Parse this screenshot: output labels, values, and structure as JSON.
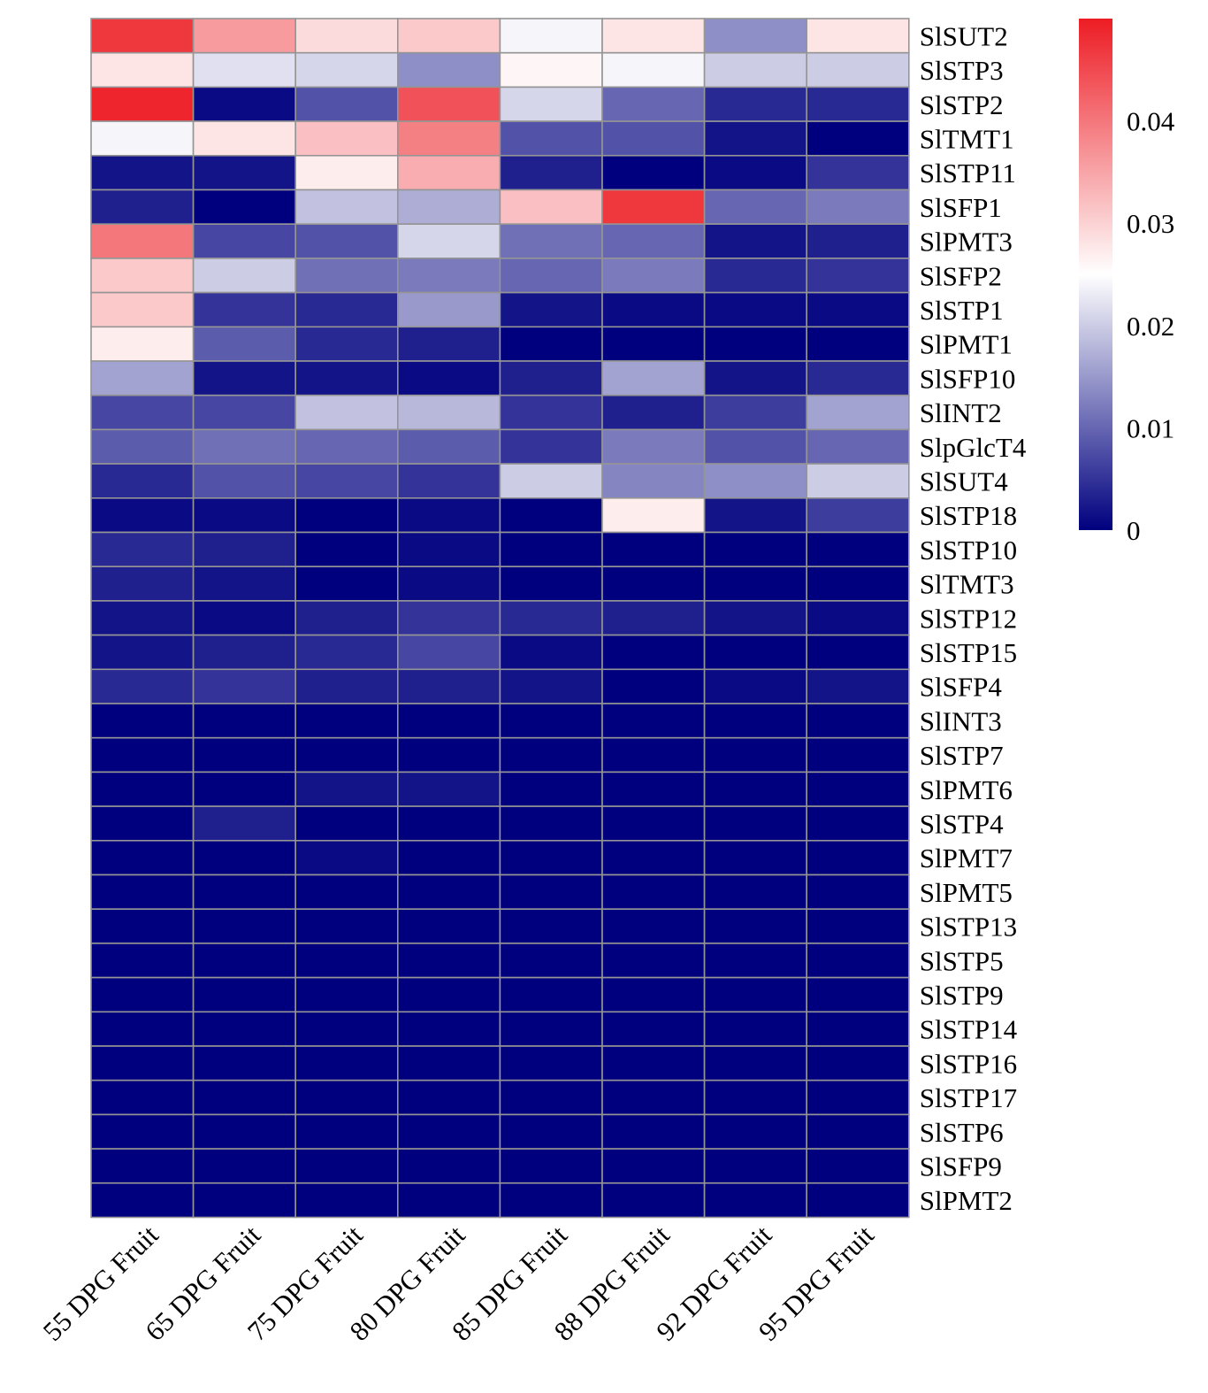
{
  "chart_data": {
    "type": "heatmap",
    "title": "",
    "xlabel": "",
    "ylabel": "",
    "columns": [
      "55 DPG Fruit",
      "65 DPG Fruit",
      "75 DPG Fruit",
      "80 DPG Fruit",
      "85 DPG Fruit",
      "88 DPG Fruit",
      "92 DPG Fruit",
      "95 DPG Fruit"
    ],
    "rows": [
      "SlSUT2",
      "SlSTP3",
      "SlSTP2",
      "SlTMT1",
      "SlSTP11",
      "SlSFP1",
      "SlPMT3",
      "SlSFP2",
      "SlSTP1",
      "SlPMT1",
      "SlSFP10",
      "SlINT2",
      "SlpGlcT4",
      "SlSUT4",
      "SlSTP18",
      "SlSTP10",
      "SlTMT3",
      "SlSTP12",
      "SlSTP15",
      "SlSFP4",
      "SlINT3",
      "SlSTP7",
      "SlPMT6",
      "SlSTP4",
      "SlPMT7",
      "SlPMT5",
      "SlSTP13",
      "SlSTP5",
      "SlSTP9",
      "SlSTP14",
      "SlSTP16",
      "SlSTP17",
      "SlSTP6",
      "SlSFP9",
      "SlPMT2"
    ],
    "values": [
      [
        0.047,
        0.036,
        0.029,
        0.031,
        0.024,
        0.028,
        0.014,
        0.028
      ],
      [
        0.028,
        0.022,
        0.021,
        0.014,
        0.026,
        0.024,
        0.02,
        0.02
      ],
      [
        0.049,
        0.001,
        0.008,
        0.044,
        0.021,
        0.01,
        0.004,
        0.004
      ],
      [
        0.024,
        0.028,
        0.032,
        0.039,
        0.008,
        0.008,
        0.002,
        0.0
      ],
      [
        0.002,
        0.002,
        0.027,
        0.034,
        0.003,
        0.0,
        0.001,
        0.005
      ],
      [
        0.003,
        0.0,
        0.019,
        0.017,
        0.032,
        0.047,
        0.01,
        0.012
      ],
      [
        0.04,
        0.007,
        0.008,
        0.021,
        0.011,
        0.01,
        0.002,
        0.003
      ],
      [
        0.031,
        0.02,
        0.011,
        0.012,
        0.01,
        0.012,
        0.004,
        0.005
      ],
      [
        0.031,
        0.005,
        0.004,
        0.015,
        0.002,
        0.001,
        0.001,
        0.001
      ],
      [
        0.027,
        0.009,
        0.004,
        0.003,
        0.0,
        0.0,
        0.0,
        0.0
      ],
      [
        0.016,
        0.002,
        0.002,
        0.001,
        0.003,
        0.016,
        0.002,
        0.004
      ],
      [
        0.007,
        0.007,
        0.019,
        0.018,
        0.005,
        0.003,
        0.006,
        0.016
      ],
      [
        0.009,
        0.011,
        0.01,
        0.009,
        0.005,
        0.012,
        0.008,
        0.01
      ],
      [
        0.004,
        0.008,
        0.007,
        0.005,
        0.02,
        0.013,
        0.014,
        0.02
      ],
      [
        0.001,
        0.001,
        0.0,
        0.001,
        0.0,
        0.027,
        0.002,
        0.006
      ],
      [
        0.004,
        0.003,
        0.0,
        0.001,
        0.0,
        0.0,
        0.0,
        0.0
      ],
      [
        0.003,
        0.002,
        0.0,
        0.001,
        0.0,
        0.0,
        0.0,
        0.0
      ],
      [
        0.002,
        0.001,
        0.003,
        0.005,
        0.004,
        0.003,
        0.002,
        0.001
      ],
      [
        0.002,
        0.003,
        0.004,
        0.007,
        0.001,
        0.0,
        0.0,
        0.0
      ],
      [
        0.004,
        0.005,
        0.003,
        0.003,
        0.002,
        0.0,
        0.001,
        0.002
      ],
      [
        0.0,
        0.0,
        0.0,
        0.0,
        0.0,
        0.0,
        0.0,
        0.0
      ],
      [
        0.0,
        0.0,
        0.0,
        0.0,
        0.0,
        0.0,
        0.0,
        0.0
      ],
      [
        0.0,
        0.0,
        0.002,
        0.002,
        0.0,
        0.0,
        0.0,
        0.0
      ],
      [
        0.0,
        0.003,
        0.0,
        0.0,
        0.0,
        0.0,
        0.0,
        0.0
      ],
      [
        0.0,
        0.0,
        0.001,
        0.0,
        0.0,
        0.0,
        0.0,
        0.0
      ],
      [
        0.0,
        0.0,
        0.0,
        0.0,
        0.0,
        0.0,
        0.0,
        0.0
      ],
      [
        0.0,
        0.0,
        0.0,
        0.0,
        0.0,
        0.0,
        0.0,
        0.0
      ],
      [
        0.0,
        0.0,
        0.0,
        0.0,
        0.0,
        0.0,
        0.0,
        0.0
      ],
      [
        0.0,
        0.0,
        0.0,
        0.0,
        0.0,
        0.0,
        0.0,
        0.0
      ],
      [
        0.0,
        0.0,
        0.0,
        0.0,
        0.0,
        0.0,
        0.0,
        0.0
      ],
      [
        0.0,
        0.0,
        0.0,
        0.0,
        0.0,
        0.0,
        0.0,
        0.0
      ],
      [
        0.0,
        0.0,
        0.0,
        0.0,
        0.0,
        0.0,
        0.0,
        0.0
      ],
      [
        0.0,
        0.0,
        0.0,
        0.0,
        0.0,
        0.0,
        0.0,
        0.0
      ],
      [
        0.0,
        0.0,
        0.0,
        0.0,
        0.0,
        0.0,
        0.0,
        0.0
      ],
      [
        0.0,
        0.0,
        0.0,
        0.0,
        0.0,
        0.0,
        0.0,
        0.0
      ]
    ],
    "colorbar": {
      "min": 0,
      "max": 0.05,
      "mid": 0.025,
      "ticks": [
        0,
        0.01,
        0.02,
        0.03,
        0.04
      ],
      "tick_labels": [
        "0",
        "0.01",
        "0.02",
        "0.03",
        "0.04"
      ],
      "low_color": "#00007f",
      "mid_color": "#ffffff",
      "high_color": "#ed1c24",
      "placement": "right"
    },
    "grid_color": "#959595"
  }
}
